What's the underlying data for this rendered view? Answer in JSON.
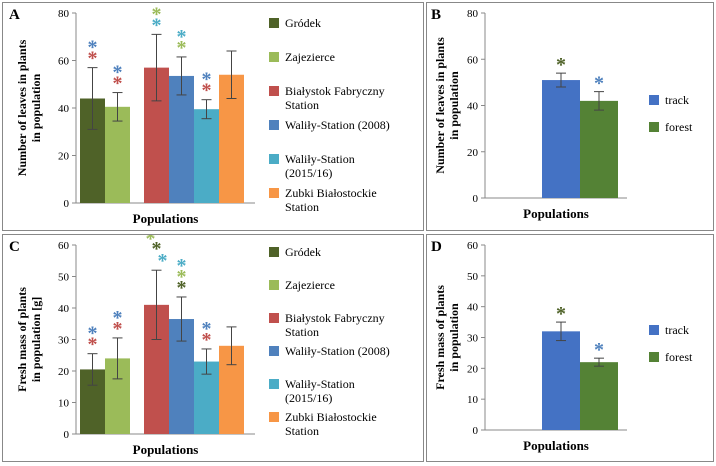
{
  "colors": {
    "grodek": "#4f6228",
    "zajezierce": "#9bbb59",
    "bialystok": "#c0504d",
    "walily2008": "#4f81bd",
    "walily2015": "#4bacc6",
    "zubki": "#f79646",
    "track": "#4472c4",
    "forest": "#548235",
    "star_darkgreen": "#4f6228",
    "star_lightgreen": "#9bbb59",
    "star_blue": "#4f81bd",
    "star_cyan": "#4bacc6",
    "star_red": "#c0504d"
  },
  "chart_data": [
    {
      "panel": "A",
      "type": "bar",
      "ylabel": "Number of leaves in plants in population",
      "xlabel": "Populations",
      "ylim": [
        0,
        80
      ],
      "yticks": [
        "0",
        "20",
        "40",
        "60",
        "80"
      ],
      "legend": [
        "Gródek",
        "Zajezierce",
        "Białystok Fabryczny Station",
        "Waliły-Station (2008)",
        "Waliły-Station (2015/16)",
        "Zubki Białostockie Station"
      ],
      "groups": [
        {
          "values": [
            44,
            40.5
          ],
          "errors": [
            13,
            6
          ],
          "colors": [
            "grodek",
            "zajezierce"
          ],
          "stars": [
            [
              {
                "c": "star_blue"
              },
              {
                "c": "star_red"
              }
            ],
            [
              {
                "c": "star_blue"
              },
              {
                "c": "star_red"
              }
            ]
          ]
        },
        {
          "values": [
            57,
            53.5,
            39.5,
            54
          ],
          "errors": [
            14,
            8,
            4,
            10
          ],
          "colors": [
            "bialystok",
            "walily2008",
            "walily2015",
            "zubki"
          ],
          "stars": [
            [
              {
                "c": "star_lightgreen"
              },
              {
                "c": "star_cyan"
              }
            ],
            [
              {
                "c": "star_cyan"
              },
              {
                "c": "star_lightgreen"
              }
            ],
            [
              {
                "c": "star_blue"
              },
              {
                "c": "star_red"
              }
            ],
            []
          ]
        }
      ]
    },
    {
      "panel": "B",
      "type": "bar",
      "ylabel": "Number of leaves in plants in population",
      "xlabel": "Populations",
      "ylim": [
        0,
        80
      ],
      "yticks": [
        "0",
        "20",
        "40",
        "60",
        "80"
      ],
      "legend": [
        "track",
        "forest"
      ],
      "values": [
        51,
        42
      ],
      "errors": [
        3,
        4
      ],
      "colors": [
        "track",
        "forest"
      ],
      "stars": [
        "star_darkgreen",
        "star_blue"
      ]
    },
    {
      "panel": "C",
      "type": "bar",
      "ylabel": "Fresh mass of plants in population [g]",
      "xlabel": "Populations",
      "ylim": [
        0,
        60
      ],
      "yticks": [
        "0",
        "10",
        "20",
        "30",
        "40",
        "50",
        "60"
      ],
      "legend": [
        "Gródek",
        "Zajezierce",
        "Białystok Fabryczny Station",
        "Waliły-Station (2008)",
        "Waliły-Station (2015/16)",
        "Zubki Białostockie Station"
      ],
      "groups": [
        {
          "values": [
            20.5,
            24
          ],
          "errors": [
            5,
            6.5
          ],
          "colors": [
            "grodek",
            "zajezierce"
          ],
          "stars": [
            [
              {
                "c": "star_blue"
              },
              {
                "c": "star_red"
              }
            ],
            [
              {
                "c": "star_blue"
              },
              {
                "c": "star_red"
              }
            ]
          ]
        },
        {
          "values": [
            41,
            36.5,
            23,
            28
          ],
          "errors": [
            11,
            7,
            4,
            6
          ],
          "colors": [
            "bialystok",
            "walily2008",
            "walily2015",
            "zubki"
          ],
          "stars": [
            [
              {
                "c": "star_lightgreen",
                "dx": -6
              },
              {
                "c": "star_darkgreen",
                "dy": -1
              },
              {
                "c": "star_cyan",
                "dx": 6
              }
            ],
            [
              {
                "c": "star_cyan"
              },
              {
                "c": "star_lightgreen"
              },
              {
                "c": "star_darkgreen"
              }
            ],
            [
              {
                "c": "star_blue"
              },
              {
                "c": "star_red"
              }
            ],
            []
          ]
        }
      ]
    },
    {
      "panel": "D",
      "type": "bar",
      "ylabel": "Fresh mass of plants in population",
      "xlabel": "Populations",
      "ylim": [
        0,
        60
      ],
      "yticks": [
        "0",
        "10",
        "20",
        "30",
        "40",
        "50",
        "60"
      ],
      "legend": [
        "track",
        "forest"
      ],
      "values": [
        32,
        22
      ],
      "errors": [
        3,
        1.3
      ],
      "colors": [
        "track",
        "forest"
      ],
      "stars": [
        "star_darkgreen",
        "star_blue"
      ]
    }
  ]
}
